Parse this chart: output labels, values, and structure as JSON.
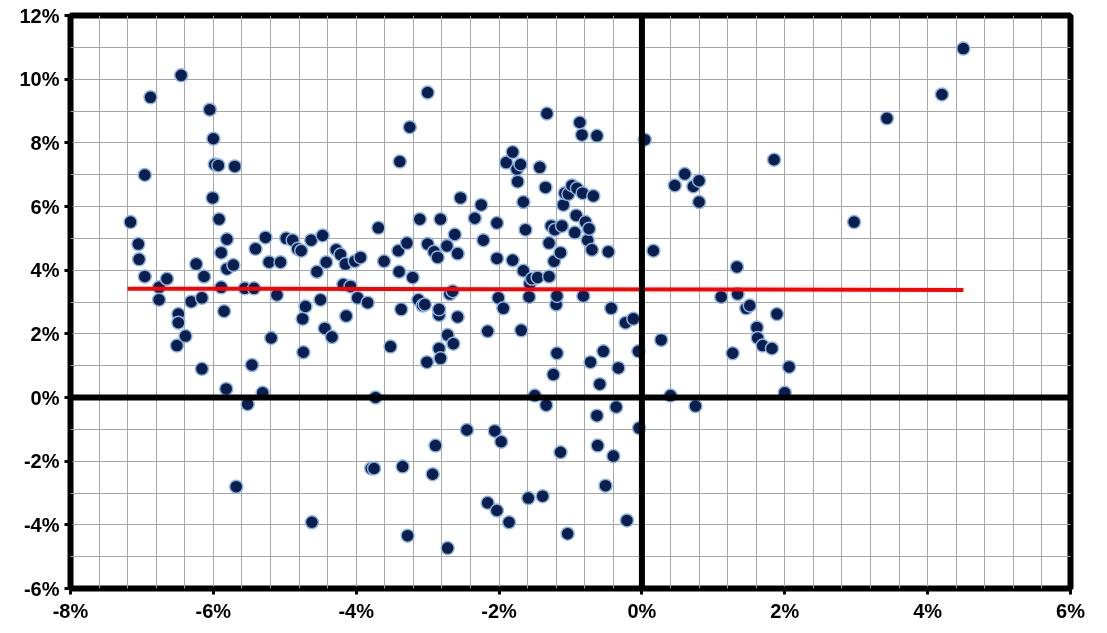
{
  "chart_data": {
    "type": "scatter",
    "grid": true,
    "xlim": [
      -8,
      6
    ],
    "ylim": [
      -6,
      12
    ],
    "xticks": [
      {
        "value": -8,
        "label": "-8%"
      },
      {
        "value": -7.6,
        "label": null
      },
      {
        "value": -7.2,
        "label": null
      },
      {
        "value": -6.8,
        "label": null
      },
      {
        "value": -6.4,
        "label": null
      },
      {
        "value": -6,
        "label": "-6%"
      },
      {
        "value": -5.6,
        "label": null
      },
      {
        "value": -5.2,
        "label": null
      },
      {
        "value": -4.8,
        "label": null
      },
      {
        "value": -4.4,
        "label": null
      },
      {
        "value": -4,
        "label": "-4%"
      },
      {
        "value": -3.6,
        "label": null
      },
      {
        "value": -3.2,
        "label": null
      },
      {
        "value": -2.8,
        "label": null
      },
      {
        "value": -2.4,
        "label": null
      },
      {
        "value": -2,
        "label": "-2%"
      },
      {
        "value": -1.6,
        "label": null
      },
      {
        "value": -1.2,
        "label": null
      },
      {
        "value": -0.8,
        "label": null
      },
      {
        "value": -0.4,
        "label": null
      },
      {
        "value": 0,
        "label": "0%"
      },
      {
        "value": 0.4,
        "label": null
      },
      {
        "value": 0.8,
        "label": null
      },
      {
        "value": 1.2,
        "label": null
      },
      {
        "value": 1.6,
        "label": null
      },
      {
        "value": 2,
        "label": "2%"
      },
      {
        "value": 2.4,
        "label": null
      },
      {
        "value": 2.8,
        "label": null
      },
      {
        "value": 3.2,
        "label": null
      },
      {
        "value": 3.6,
        "label": null
      },
      {
        "value": 4,
        "label": "4%"
      },
      {
        "value": 4.4,
        "label": null
      },
      {
        "value": 4.8,
        "label": null
      },
      {
        "value": 5.2,
        "label": null
      },
      {
        "value": 5.6,
        "label": null
      },
      {
        "value": 6,
        "label": "6%"
      }
    ],
    "yticks": [
      {
        "value": -6,
        "label": "-6%"
      },
      {
        "value": -5,
        "label": null
      },
      {
        "value": -4,
        "label": "-4%"
      },
      {
        "value": -3,
        "label": null
      },
      {
        "value": -2,
        "label": "-2%"
      },
      {
        "value": -1,
        "label": null
      },
      {
        "value": 0,
        "label": "0%"
      },
      {
        "value": 1,
        "label": null
      },
      {
        "value": 2,
        "label": "2%"
      },
      {
        "value": 3,
        "label": null
      },
      {
        "value": 4,
        "label": "4%"
      },
      {
        "value": 5,
        "label": null
      },
      {
        "value": 6,
        "label": "6%"
      },
      {
        "value": 7,
        "label": null
      },
      {
        "value": 8,
        "label": "8%"
      },
      {
        "value": 9,
        "label": null
      },
      {
        "value": 10,
        "label": "10%"
      },
      {
        "value": 11,
        "label": null
      },
      {
        "value": 12,
        "label": "12%"
      }
    ],
    "series": [
      {
        "marker": "circle",
        "color": "#0a1f4e",
        "x": [
          -7.16,
          -7.05,
          -7.04,
          -6.96,
          -6.96,
          -6.88,
          -6.76,
          -6.76,
          -6.65,
          -6.49,
          -6.49,
          -6.51,
          -6.45,
          -6.39,
          -6.31,
          -6.24,
          -6.16,
          -6.13,
          -6.16,
          -6.05,
          -6.01,
          -6.0,
          -5.98,
          -5.93,
          -5.92,
          -5.89,
          -5.89,
          -5.85,
          -5.81,
          -5.81,
          -5.82,
          -5.72,
          -5.7,
          -5.68,
          -5.56,
          -5.52,
          -5.46,
          -5.43,
          -5.41,
          -5.31,
          -5.27,
          -5.22,
          -5.19,
          -5.11,
          -5.06,
          -4.98,
          -4.89,
          -4.82,
          -4.77,
          -4.75,
          -4.74,
          -4.71,
          -4.63,
          -4.62,
          -4.55,
          -4.5,
          -4.47,
          -4.44,
          -4.42,
          -4.34,
          -4.28,
          -4.22,
          -4.18,
          -4.15,
          -4.14,
          -4.08,
          -4.02,
          -3.98,
          -3.94,
          -3.84,
          -3.79,
          -3.73,
          -3.75,
          -3.69,
          -3.61,
          -3.52,
          -3.41,
          -3.4,
          -3.39,
          -3.37,
          -3.35,
          -3.29,
          -3.28,
          -3.25,
          -3.21,
          -3.13,
          -3.11,
          -3.07,
          -3.04,
          -3.01,
          -3.0,
          -3.0,
          -2.93,
          -2.91,
          -2.89,
          -2.86,
          -2.84,
          -2.84,
          -2.84,
          -2.82,
          -2.82,
          -2.73,
          -2.72,
          -2.72,
          -2.69,
          -2.65,
          -2.64,
          -2.58,
          -2.58,
          -2.62,
          -2.54,
          -2.45,
          -2.34,
          -2.25,
          -2.22,
          -2.16,
          -2.16,
          -2.06,
          -2.03,
          -2.03,
          -2.03,
          -2.01,
          -1.97,
          -1.94,
          -1.9,
          -1.86,
          -1.81,
          -1.81,
          -1.75,
          -1.74,
          -1.7,
          -1.69,
          -1.66,
          -1.66,
          -1.63,
          -1.59,
          -1.58,
          -1.57,
          -1.54,
          -1.5,
          -1.46,
          -1.43,
          -1.39,
          -1.35,
          -1.34,
          -1.33,
          -1.3,
          -1.3,
          -1.27,
          -1.24,
          -1.23,
          -1.22,
          -1.2,
          -1.19,
          -1.19,
          -1.14,
          -1.14,
          -1.12,
          -1.1,
          -1.08,
          -1.04,
          -1.03,
          -0.98,
          -0.94,
          -0.92,
          -0.91,
          -0.87,
          -0.84,
          -0.83,
          -0.82,
          -0.79,
          -0.76,
          -0.74,
          -0.72,
          -0.68,
          -0.7,
          -0.63,
          -0.63,
          -0.62,
          -0.59,
          -0.54,
          -0.51,
          -0.47,
          -0.43,
          -0.4,
          -0.36,
          -0.33,
          -0.23,
          -0.21,
          -0.12,
          -0.05,
          -0.04,
          0.04,
          0.16,
          0.27,
          0.4,
          0.46,
          0.6,
          0.72,
          0.75,
          0.8,
          0.8,
          1.11,
          1.27,
          1.33,
          1.34,
          1.46,
          1.51,
          1.61,
          1.62,
          1.69,
          1.82,
          1.85,
          1.89,
          2.0,
          2.06,
          2.97,
          3.43,
          4.2,
          4.5
        ],
        "values": [
          5.51,
          4.82,
          4.34,
          3.8,
          6.99,
          9.43,
          3.46,
          3.07,
          3.73,
          2.62,
          2.35,
          1.63,
          10.12,
          1.93,
          3.01,
          4.19,
          3.13,
          3.8,
          0.9,
          9.04,
          6.27,
          8.13,
          7.32,
          7.29,
          5.6,
          4.55,
          3.46,
          2.71,
          4.97,
          4.04,
          0.27,
          4.16,
          7.26,
          -2.8,
          3.43,
          -0.21,
          1.02,
          3.43,
          4.67,
          0.15,
          5.03,
          4.25,
          1.87,
          3.22,
          4.25,
          5.0,
          4.94,
          4.67,
          4.61,
          2.47,
          1.42,
          2.86,
          4.94,
          -3.92,
          3.95,
          3.07,
          5.09,
          2.17,
          4.25,
          1.9,
          4.64,
          4.49,
          3.55,
          4.19,
          2.56,
          3.49,
          4.28,
          3.13,
          4.4,
          2.98,
          -2.23,
          0.0,
          -2.23,
          5.33,
          4.28,
          1.6,
          4.61,
          3.95,
          7.41,
          2.77,
          -2.17,
          4.85,
          -4.34,
          8.49,
          3.77,
          3.07,
          5.6,
          2.89,
          2.92,
          1.11,
          9.58,
          4.82,
          -2.41,
          4.58,
          -1.51,
          4.4,
          2.59,
          2.77,
          1.54,
          1.23,
          5.6,
          4.76,
          1.96,
          -4.73,
          3.25,
          3.34,
          1.69,
          4.52,
          2.53,
          5.12,
          6.27,
          -1.02,
          5.63,
          6.05,
          4.94,
          2.08,
          -3.31,
          -1.05,
          4.37,
          -3.55,
          5.48,
          3.13,
          -1.39,
          2.8,
          7.38,
          -3.92,
          4.31,
          7.71,
          7.17,
          6.78,
          7.32,
          2.11,
          3.98,
          6.14,
          5.27,
          -3.16,
          3.16,
          3.58,
          3.73,
          0.06,
          3.77,
          7.23,
          -3.1,
          6.6,
          -0.24,
          8.92,
          3.8,
          4.85,
          5.39,
          0.72,
          4.28,
          5.27,
          2.92,
          1.39,
          3.19,
          4.55,
          -1.72,
          5.39,
          6.05,
          6.42,
          -4.28,
          6.39,
          6.66,
          5.18,
          5.72,
          6.57,
          8.64,
          8.25,
          6.42,
          3.19,
          5.51,
          4.94,
          5.3,
          1.11,
          6.33,
          4.64,
          8.22,
          -0.57,
          -1.51,
          0.42,
          1.45,
          -2.77,
          4.58,
          2.8,
          -1.84,
          -0.3,
          0.93,
          2.35,
          -3.86,
          2.47,
          1.45,
          -0.96,
          8.1,
          4.61,
          1.81,
          0.06,
          6.66,
          7.02,
          6.63,
          -0.27,
          6.14,
          6.81,
          3.16,
          1.39,
          4.1,
          3.25,
          2.8,
          2.89,
          2.2,
          1.87,
          1.63,
          1.54,
          7.47,
          2.62,
          0.15,
          0.96,
          5.51,
          8.77,
          9.52,
          10.96
        ]
      },
      {
        "type": "line",
        "color": "#ff0000",
        "line_style": "solid",
        "x": [
          -7.2,
          4.5
        ],
        "values": [
          3.42,
          3.38
        ]
      }
    ]
  }
}
